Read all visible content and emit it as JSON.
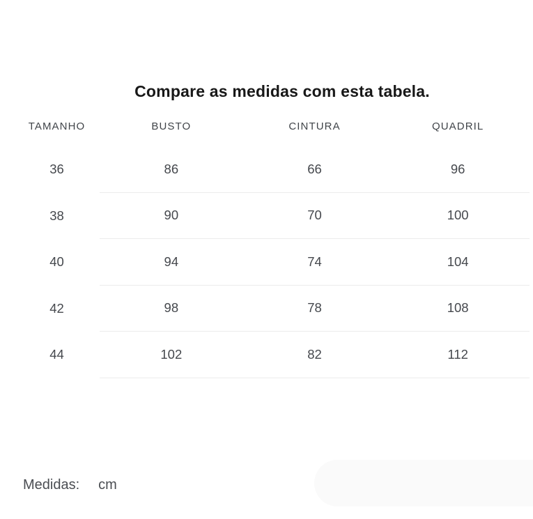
{
  "title": "Compare as medidas com esta tabela.",
  "table": {
    "columns": [
      "TAMANHO",
      "BUSTO",
      "CINTURA",
      "QUADRIL"
    ],
    "rows": [
      [
        "36",
        "86",
        "66",
        "96"
      ],
      [
        "38",
        "90",
        "70",
        "100"
      ],
      [
        "40",
        "94",
        "74",
        "104"
      ],
      [
        "42",
        "98",
        "78",
        "108"
      ],
      [
        "44",
        "102",
        "82",
        "112"
      ]
    ]
  },
  "footer": {
    "label": "Medidas:",
    "unit": "cm"
  },
  "colors": {
    "title_text": "#181818",
    "body_text": "#45484d",
    "divider": "#ececec",
    "pill_background": "#fafafa",
    "page_background": "#ffffff"
  }
}
